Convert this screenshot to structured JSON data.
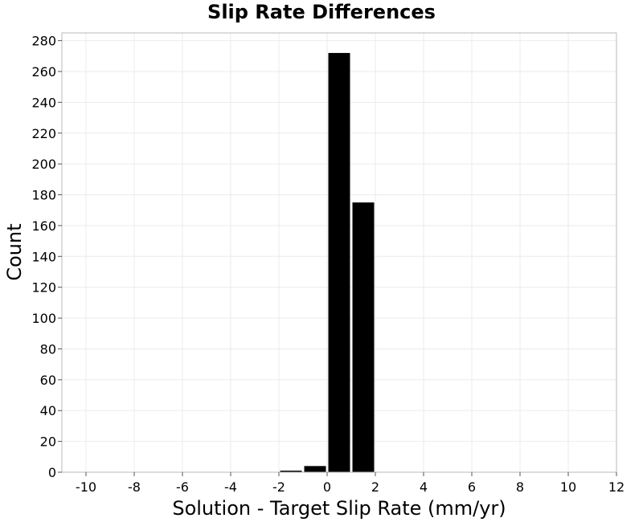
{
  "chart_data": {
    "type": "bar",
    "title": "Slip Rate Differences",
    "xlabel": "Solution - Target Slip Rate (mm/yr)",
    "ylabel": "Count",
    "xlim": [
      -11,
      12
    ],
    "ylim": [
      0,
      285
    ],
    "x_ticks": [
      -10,
      -8,
      -6,
      -4,
      -2,
      0,
      2,
      4,
      6,
      8,
      10,
      12
    ],
    "y_ticks": [
      0,
      20,
      40,
      60,
      80,
      100,
      120,
      140,
      160,
      180,
      200,
      220,
      240,
      260,
      280
    ],
    "bin_width": 1,
    "bars": [
      {
        "x": -1.5,
        "value": 1
      },
      {
        "x": -0.5,
        "value": 4
      },
      {
        "x": 0.5,
        "value": 272
      },
      {
        "x": 1.5,
        "value": 175
      }
    ],
    "grid": true,
    "bar_color": "#000000",
    "grid_color": "#ebebeb"
  }
}
